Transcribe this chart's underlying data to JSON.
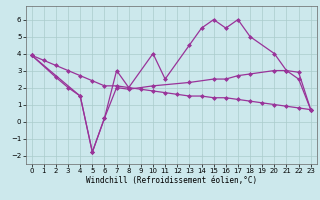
{
  "background_color": "#cce8ec",
  "grid_color": "#aacccc",
  "line_color": "#993399",
  "xlim": [
    -0.5,
    23.5
  ],
  "ylim": [
    -2.5,
    6.8
  ],
  "xlabel": "Windchill (Refroidissement éolien,°C)",
  "yticks": [
    -2,
    -1,
    0,
    1,
    2,
    3,
    4,
    5,
    6
  ],
  "xticks": [
    0,
    1,
    2,
    3,
    4,
    5,
    6,
    7,
    8,
    9,
    10,
    11,
    12,
    13,
    14,
    15,
    16,
    17,
    18,
    19,
    20,
    21,
    22,
    23
  ],
  "line1_x": [
    0,
    1,
    2,
    3,
    4,
    5,
    6,
    7,
    8,
    9,
    10,
    11,
    12,
    13,
    14,
    15,
    16,
    17,
    18,
    19,
    20,
    21,
    22,
    23
  ],
  "line1_y": [
    3.9,
    3.6,
    3.3,
    3.0,
    2.7,
    2.4,
    2.1,
    2.1,
    2.0,
    1.9,
    1.8,
    1.7,
    1.6,
    1.5,
    1.5,
    1.4,
    1.4,
    1.3,
    1.2,
    1.1,
    1.0,
    0.9,
    0.8,
    0.7
  ],
  "line2_x": [
    0,
    4,
    5,
    6,
    7,
    8,
    10,
    11,
    13,
    14,
    15,
    16,
    17,
    18,
    20,
    21,
    22,
    23
  ],
  "line2_y": [
    3.9,
    1.5,
    -1.8,
    0.2,
    3.0,
    2.0,
    4.0,
    2.5,
    4.5,
    5.5,
    6.0,
    5.5,
    6.0,
    5.0,
    4.0,
    3.0,
    2.5,
    0.7
  ],
  "line3_x": [
    0,
    2,
    3,
    4,
    5,
    6,
    7,
    8,
    10,
    13,
    15,
    16,
    17,
    18,
    20,
    21,
    22,
    23
  ],
  "line3_y": [
    3.9,
    2.6,
    2.0,
    1.5,
    -1.8,
    0.2,
    2.0,
    1.9,
    2.1,
    2.3,
    2.5,
    2.5,
    2.7,
    2.8,
    3.0,
    3.0,
    2.9,
    0.7
  ],
  "axis_fontsize": 5.5,
  "tick_fontsize": 5.0,
  "marker_size": 2.5,
  "line_width": 0.9
}
